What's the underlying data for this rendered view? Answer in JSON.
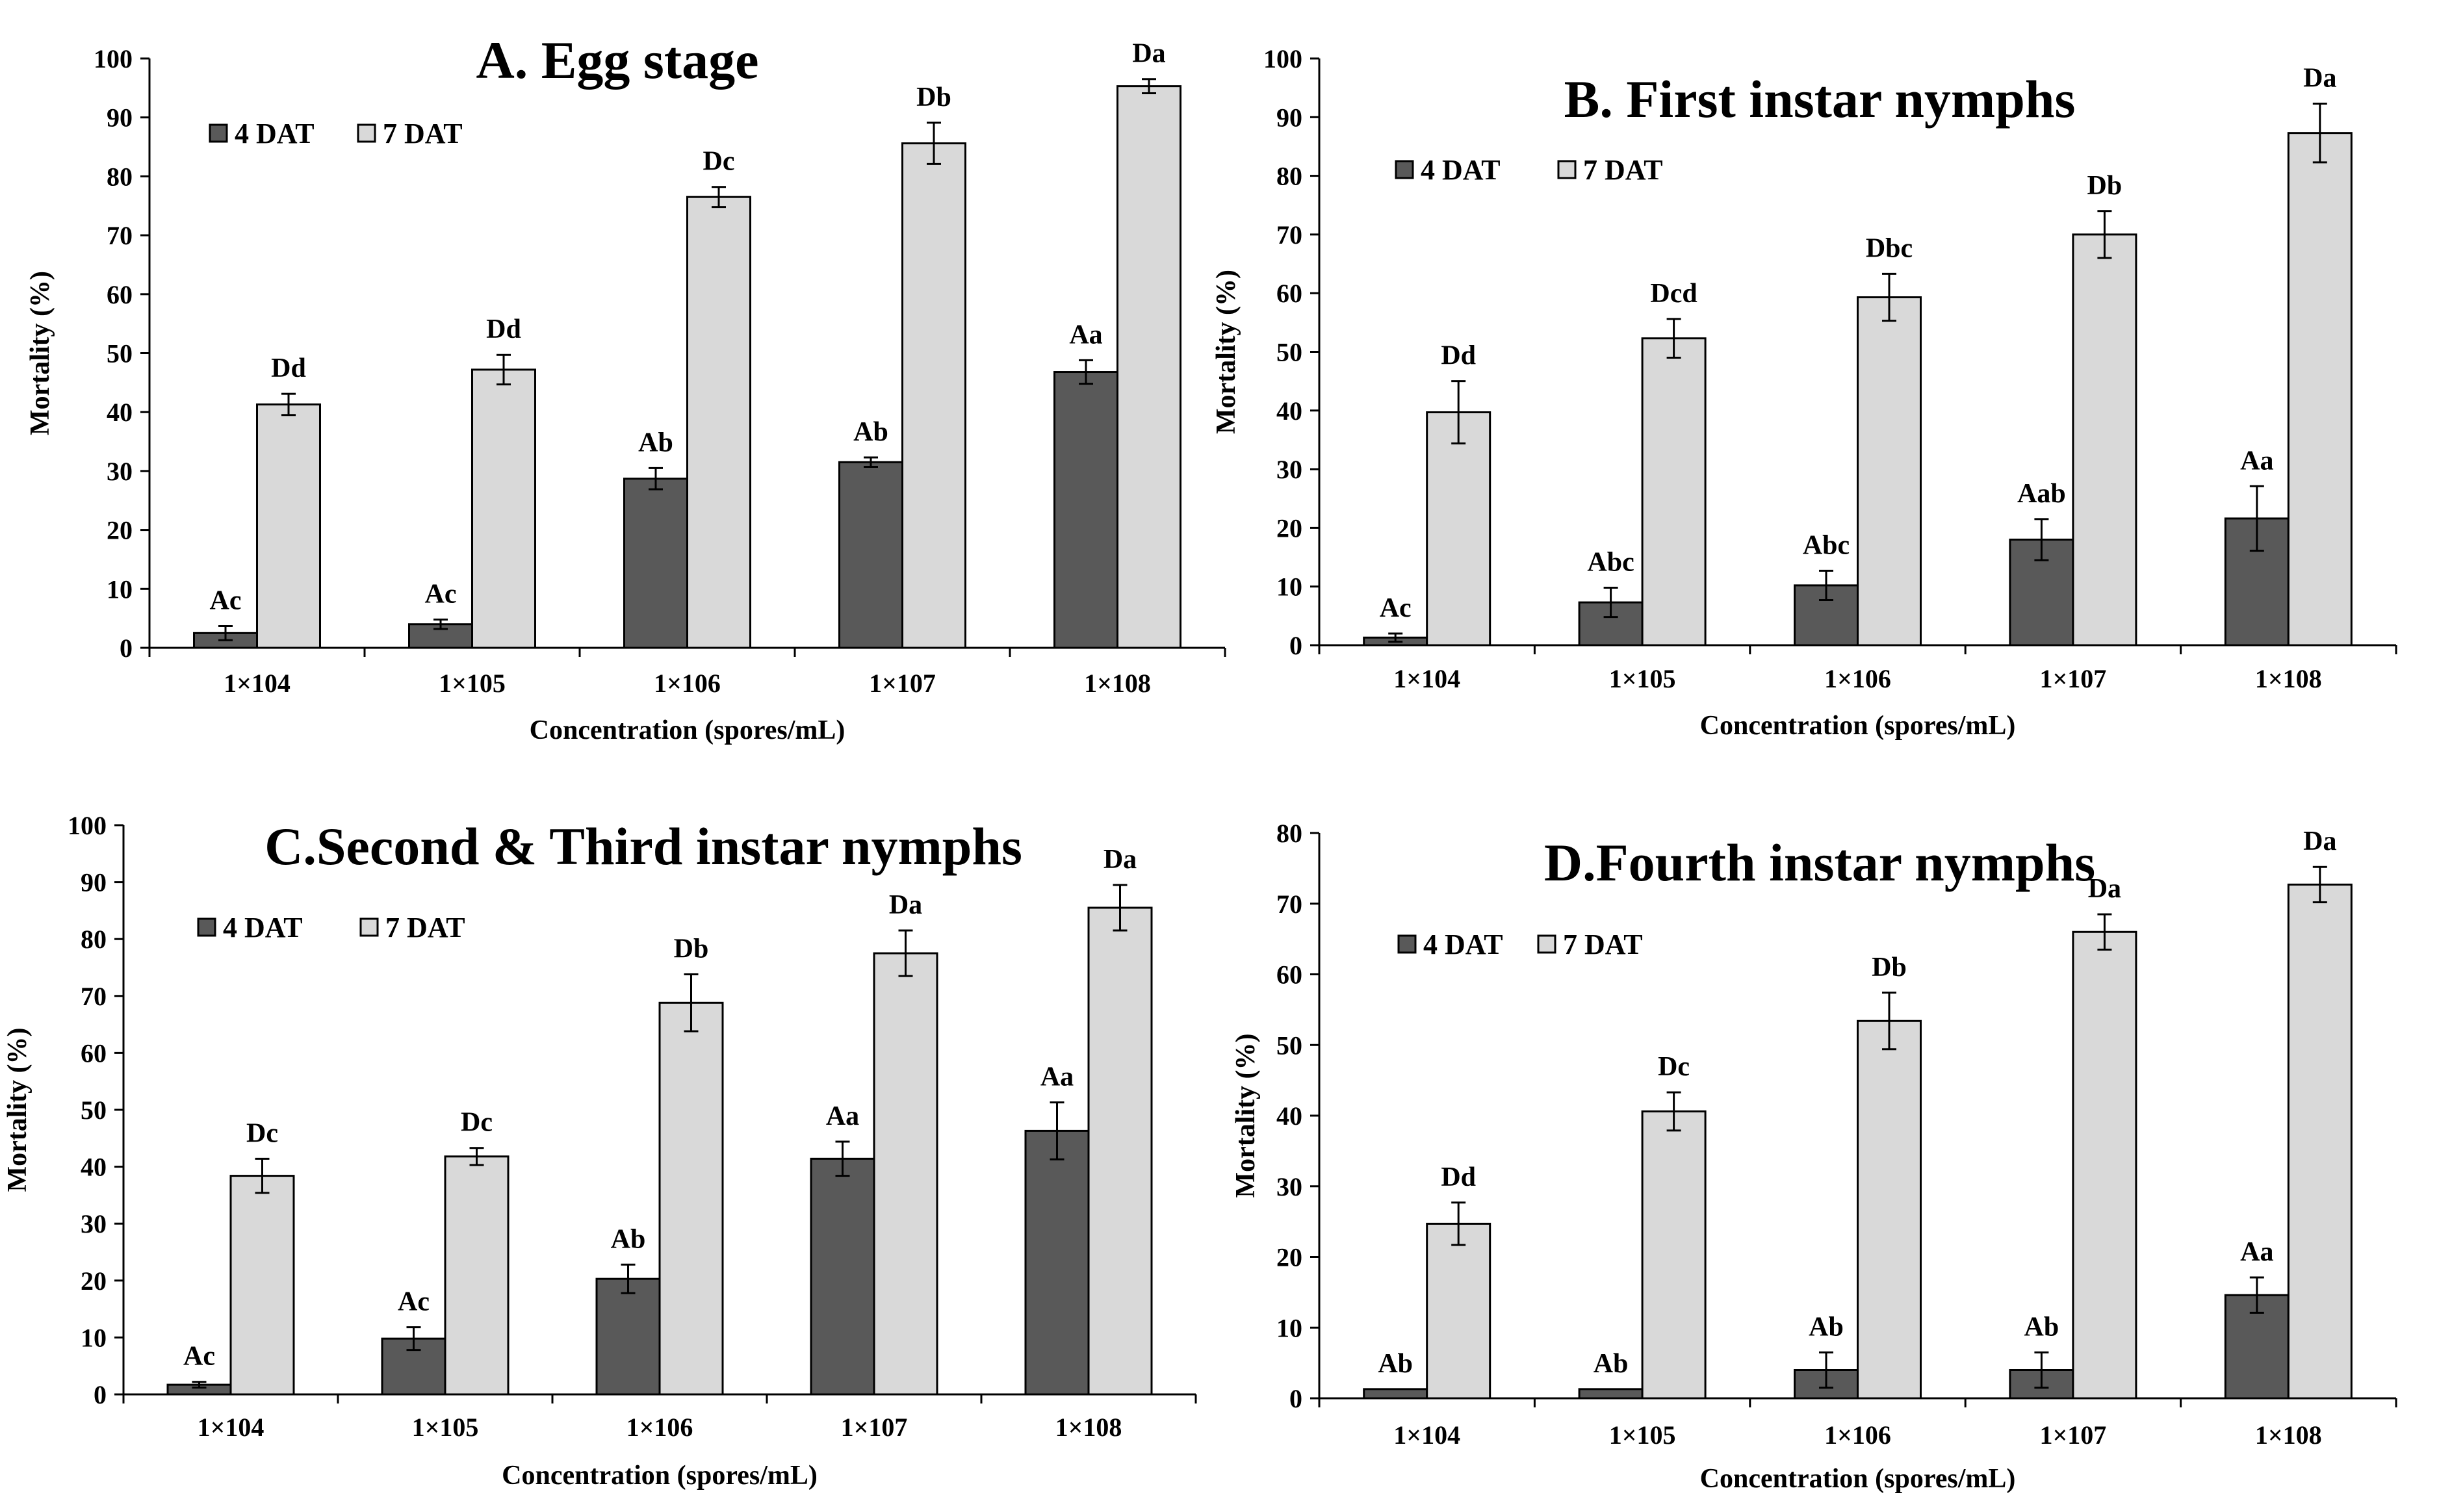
{
  "colors": {
    "series1": "#595959",
    "series2": "#d9d9d9",
    "axis": "#000000",
    "background": "#ffffff"
  },
  "chart_data": [
    {
      "type": "bar",
      "title": "A. Egg stage",
      "xlabel": "Concentration  (spores/mL)",
      "ylabel": "Mortality  (%)",
      "ylim": [
        0,
        100
      ],
      "ytick_step": 10,
      "grid": false,
      "legend_position": "top-left",
      "categories": [
        "1×104",
        "1×105",
        "1×106",
        "1×107",
        "1×108"
      ],
      "series": [
        {
          "name": "4 DAT",
          "color": "#595959",
          "values": [
            2.5,
            4,
            28.7,
            31.5,
            46.8
          ],
          "errors": [
            1.2,
            0.8,
            1.8,
            0.8,
            2.0
          ],
          "labels": [
            "Ac",
            "Ac",
            "Ab",
            "Ab",
            "Aa"
          ]
        },
        {
          "name": "7 DAT",
          "color": "#d9d9d9",
          "values": [
            41.3,
            47.2,
            76.5,
            85.6,
            95.3
          ],
          "errors": [
            1.8,
            2.5,
            1.7,
            3.5,
            1.2
          ],
          "labels": [
            "Dd",
            "Dd",
            "Dc",
            "Db",
            "Da"
          ]
        }
      ]
    },
    {
      "type": "bar",
      "title": "B. First instar nymphs",
      "xlabel": "Concentration  (spores/mL)",
      "ylabel": "Mortality  (%)",
      "ylim": [
        0,
        100
      ],
      "ytick_step": 10,
      "grid": false,
      "legend_position": "top-left",
      "categories": [
        "1×104",
        "1×105",
        "1×106",
        "1×107",
        "1×108"
      ],
      "series": [
        {
          "name": "4 DAT",
          "color": "#595959",
          "values": [
            1.3,
            7.3,
            10.2,
            18,
            21.6
          ],
          "errors": [
            0.7,
            2.5,
            2.5,
            3.5,
            5.5
          ],
          "labels": [
            "Ac",
            "Abc",
            "Abc",
            "Aab",
            "Aa"
          ]
        },
        {
          "name": "7 DAT",
          "color": "#d9d9d9",
          "values": [
            39.7,
            52.3,
            59.3,
            70,
            87.3
          ],
          "errors": [
            5.3,
            3.3,
            4.0,
            4.0,
            5.0
          ],
          "labels": [
            "Dd",
            "Dcd",
            "Dbc",
            "Db",
            "Da"
          ]
        }
      ]
    },
    {
      "type": "bar",
      "title": "C.Second & Third instar nymphs",
      "xlabel": "Concentration  (spores/mL)",
      "ylabel": "Mortality  (%)",
      "ylim": [
        0,
        100
      ],
      "ytick_step": 10,
      "grid": false,
      "legend_position": "top-left",
      "categories": [
        "1×104",
        "1×105",
        "1×106",
        "1×107",
        "1×108"
      ],
      "series": [
        {
          "name": "4 DAT",
          "color": "#595959",
          "values": [
            1.7,
            9.8,
            20.3,
            41.4,
            46.3
          ],
          "errors": [
            0.5,
            2.0,
            2.5,
            3.0,
            5.0
          ],
          "labels": [
            "Ac",
            "Ac",
            "Ab",
            "Aa",
            "Aa"
          ]
        },
        {
          "name": "7 DAT",
          "color": "#d9d9d9",
          "values": [
            38.4,
            41.8,
            68.8,
            77.5,
            85.5
          ],
          "errors": [
            3.0,
            1.5,
            5.0,
            4.0,
            4.0
          ],
          "labels": [
            "Dc",
            "Dc",
            "Db",
            "Da",
            "Da"
          ]
        }
      ]
    },
    {
      "type": "bar",
      "title": "D.Fourth instar nymphs",
      "xlabel": "Concentration  (spores/mL)",
      "ylabel": "Mortality  (%)",
      "ylim": [
        0,
        80
      ],
      "ytick_step": 10,
      "grid": false,
      "legend_position": "top-left",
      "categories": [
        "1×104",
        "1×105",
        "1×106",
        "1×107",
        "1×108"
      ],
      "series": [
        {
          "name": "4 DAT",
          "color": "#595959",
          "values": [
            1.3,
            1.3,
            4.0,
            4.0,
            14.6
          ],
          "errors": [
            0,
            0,
            2.5,
            2.5,
            2.5
          ],
          "labels": [
            "Ab",
            "Ab",
            "Ab",
            "Ab",
            "Aa"
          ]
        },
        {
          "name": "7 DAT",
          "color": "#d9d9d9",
          "values": [
            24.7,
            40.6,
            53.4,
            66,
            72.7
          ],
          "errors": [
            3.0,
            2.7,
            4.0,
            2.5,
            2.5
          ],
          "labels": [
            "Dd",
            "Dc",
            "Db",
            "Da",
            "Da"
          ]
        }
      ]
    }
  ]
}
